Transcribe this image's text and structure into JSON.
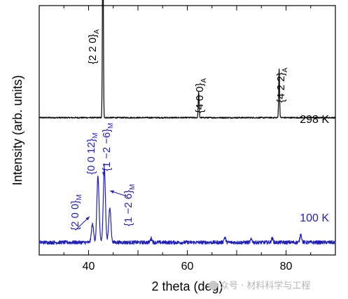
{
  "chart_data": {
    "type": "line",
    "xlabel": "2 theta (deg)",
    "ylabel": "Intensity (arb. units)",
    "xlim": [
      30,
      90
    ],
    "x_ticks": [
      40,
      60,
      80
    ],
    "grid": false,
    "legend": "none",
    "series": [
      {
        "name": "298 K",
        "color": "#000000",
        "baseline": 0.62,
        "peaks": [
          {
            "x": 42.9,
            "height": 1.0,
            "label": "{2 2 0}",
            "sub": "A"
          },
          {
            "x": 62.3,
            "height": 0.13,
            "label": "{4 0 0}",
            "sub": "A"
          },
          {
            "x": 78.6,
            "height": 0.24,
            "label": "{4 2 2}",
            "sub": "A"
          }
        ]
      },
      {
        "name": "100 K",
        "color": "#1f1fbf",
        "baseline": 0.0,
        "peaks": [
          {
            "x": 40.8,
            "height": 0.09,
            "label": "{2 0 0}",
            "sub": "M"
          },
          {
            "x": 41.9,
            "height": 0.33,
            "label": "{0 0 12}",
            "sub": "M"
          },
          {
            "x": 43.2,
            "height": 0.36,
            "label": "{1 −2 −6}",
            "sub": "M"
          },
          {
            "x": 44.3,
            "height": 0.17,
            "label": "{1 −2 6}",
            "sub": "M"
          },
          {
            "x": 52.7,
            "height": 0.02
          },
          {
            "x": 67.6,
            "height": 0.025
          },
          {
            "x": 73.0,
            "height": 0.015
          },
          {
            "x": 77.2,
            "height": 0.02
          },
          {
            "x": 83.0,
            "height": 0.04
          }
        ]
      }
    ]
  },
  "watermark": "众号 · 材料科学与工程"
}
